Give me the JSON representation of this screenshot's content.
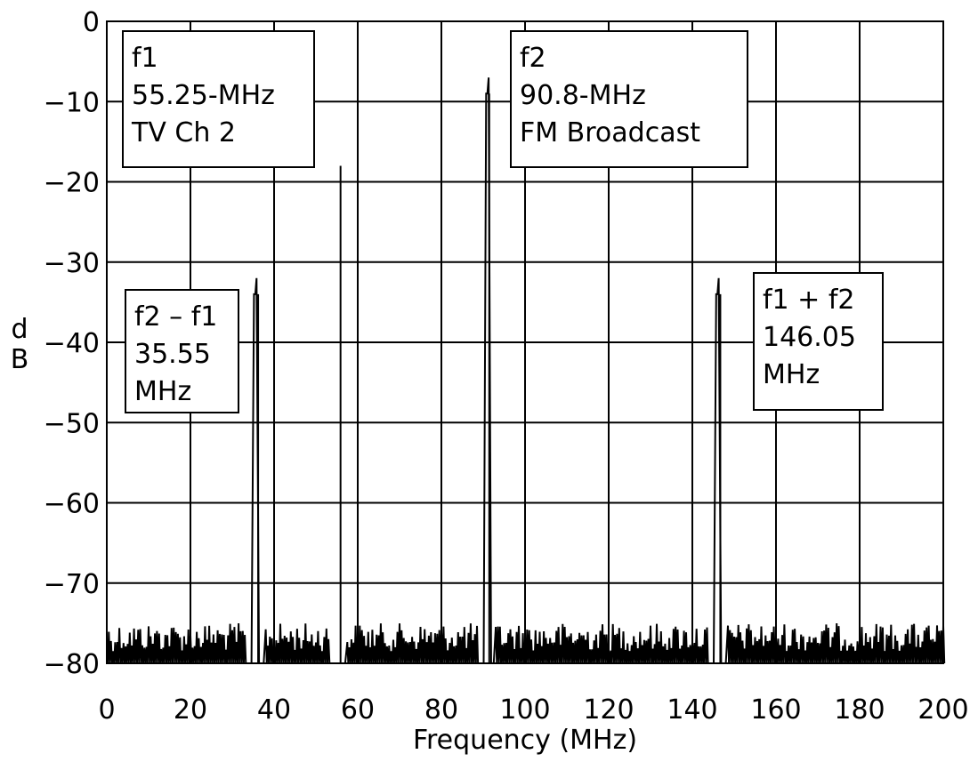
{
  "chart_data": {
    "type": "line",
    "xlabel": "Frequency (MHz)",
    "ylabel": "dB",
    "xlim": [
      0,
      200
    ],
    "ylim": [
      -80,
      0
    ],
    "x_ticks": [
      "0",
      "20",
      "40",
      "60",
      "80",
      "100",
      "120",
      "140",
      "160",
      "180",
      "200"
    ],
    "y_ticks": [
      "0",
      "−10",
      "−20",
      "−30",
      "−40",
      "−50",
      "−60",
      "−70",
      "−80"
    ],
    "grid": true,
    "noise_floor_db": [
      -80,
      -75
    ],
    "peaks": [
      {
        "x": 35.55,
        "y": -34
      },
      {
        "x": 55.25,
        "y": -18
      },
      {
        "x": 90.8,
        "y": -9
      },
      {
        "x": 146.05,
        "y": -34
      }
    ],
    "annotations": [
      {
        "lines": [
          "f1",
          "55.25-MHz",
          "TV Ch 2"
        ]
      },
      {
        "lines": [
          "f2",
          "90.8-MHz",
          "FM Broadcast"
        ]
      },
      {
        "lines": [
          "f2 – f1",
          "35.55",
          "MHz"
        ]
      },
      {
        "lines": [
          "f1 + f2",
          "146.05",
          "MHz"
        ]
      }
    ]
  }
}
